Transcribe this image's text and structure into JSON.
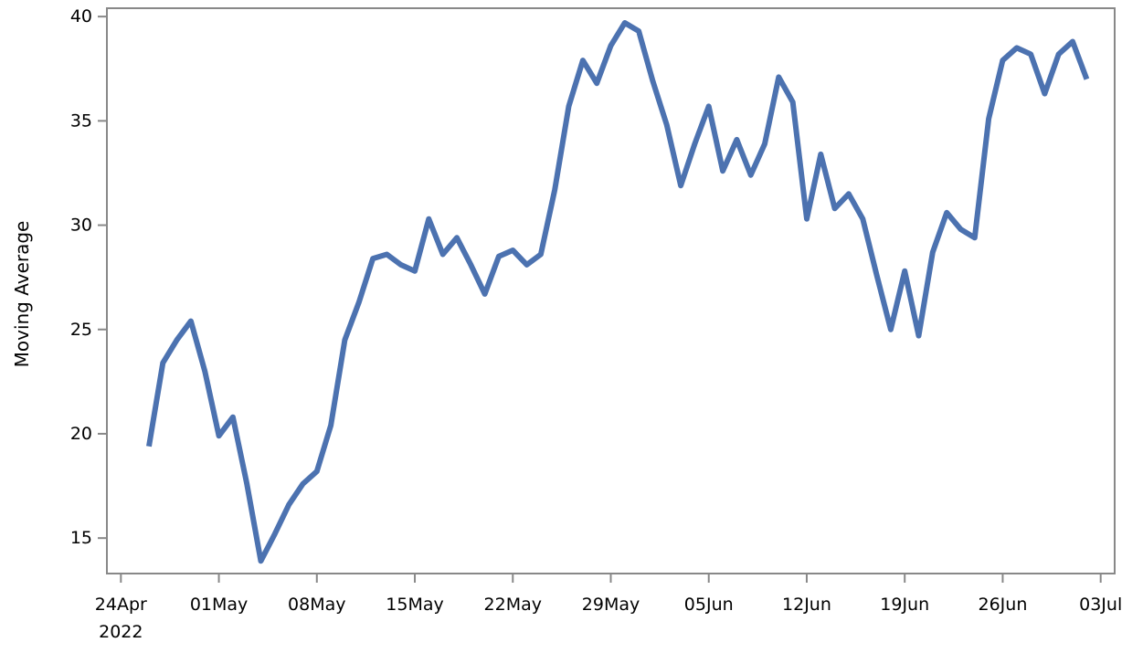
{
  "chart_data": {
    "type": "line",
    "title": "",
    "xlabel": "",
    "ylabel": "Moving Average",
    "x_tick_labels": [
      "24Apr\n2022",
      "01May",
      "08May",
      "15May",
      "22May",
      "29May",
      "05Jun",
      "12Jun",
      "19Jun",
      "26Jun",
      "03Jul"
    ],
    "y_tick_labels": [
      "15",
      "20",
      "25",
      "30",
      "35",
      "40"
    ],
    "x_ticks": [
      "2022-04-24",
      "2022-05-01",
      "2022-05-08",
      "2022-05-15",
      "2022-05-22",
      "2022-05-29",
      "2022-06-05",
      "2022-06-12",
      "2022-06-19",
      "2022-06-26",
      "2022-07-03"
    ],
    "y_ticks": [
      15,
      20,
      25,
      30,
      35,
      40
    ],
    "xlim": [
      "2022-04-23",
      "2022-07-04"
    ],
    "ylim": [
      13.3,
      40.4
    ],
    "grid": false,
    "line_color": "#4c72b0",
    "series": [
      {
        "x": [
          "2022-04-26",
          "2022-04-27",
          "2022-04-28",
          "2022-04-29",
          "2022-04-30",
          "2022-05-01",
          "2022-05-02",
          "2022-05-03",
          "2022-05-04",
          "2022-05-05",
          "2022-05-06",
          "2022-05-07",
          "2022-05-08",
          "2022-05-09",
          "2022-05-10",
          "2022-05-11",
          "2022-05-12",
          "2022-05-13",
          "2022-05-14",
          "2022-05-15",
          "2022-05-16",
          "2022-05-17",
          "2022-05-18",
          "2022-05-19",
          "2022-05-20",
          "2022-05-21",
          "2022-05-22",
          "2022-05-23",
          "2022-05-24",
          "2022-05-25",
          "2022-05-26",
          "2022-05-27",
          "2022-05-28",
          "2022-05-29",
          "2022-05-30",
          "2022-05-31",
          "2022-06-01",
          "2022-06-02",
          "2022-06-03",
          "2022-06-04",
          "2022-06-05",
          "2022-06-06",
          "2022-06-07",
          "2022-06-08",
          "2022-06-09",
          "2022-06-10",
          "2022-06-11",
          "2022-06-12",
          "2022-06-13",
          "2022-06-14",
          "2022-06-15",
          "2022-06-16",
          "2022-06-17",
          "2022-06-18",
          "2022-06-19",
          "2022-06-20",
          "2022-06-21",
          "2022-06-22",
          "2022-06-23",
          "2022-06-24",
          "2022-06-25",
          "2022-06-26",
          "2022-06-27",
          "2022-06-28",
          "2022-06-29",
          "2022-06-30",
          "2022-07-01",
          "2022-07-02"
        ],
        "values": [
          19.4,
          23.4,
          24.5,
          25.4,
          23.0,
          19.9,
          20.8,
          17.6,
          13.9,
          15.2,
          16.6,
          17.6,
          18.2,
          20.4,
          24.5,
          26.3,
          28.4,
          28.6,
          28.1,
          27.8,
          30.3,
          28.6,
          29.4,
          28.1,
          26.7,
          28.5,
          28.8,
          28.1,
          28.6,
          31.7,
          35.7,
          37.9,
          36.8,
          38.6,
          39.7,
          39.3,
          36.9,
          34.8,
          31.9,
          33.9,
          35.7,
          32.6,
          34.1,
          32.4,
          33.9,
          37.1,
          35.9,
          30.3,
          33.4,
          30.8,
          31.5,
          30.3,
          27.6,
          25.0,
          27.8,
          24.7,
          28.7,
          30.6,
          29.8,
          29.4,
          35.1,
          37.9,
          38.5,
          38.2,
          36.3,
          38.2,
          38.8,
          37.0
        ]
      }
    ]
  }
}
